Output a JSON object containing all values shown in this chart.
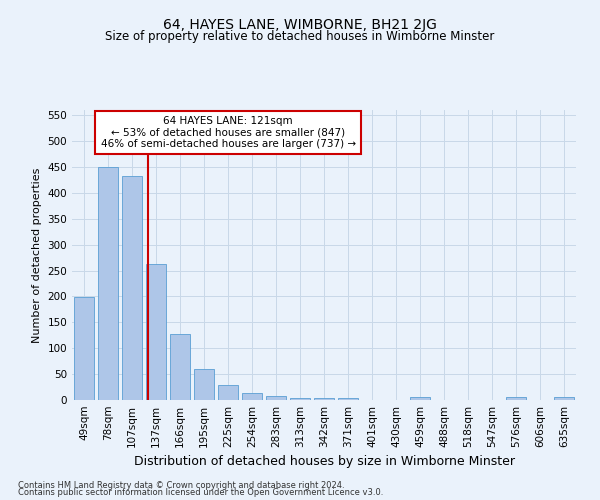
{
  "title": "64, HAYES LANE, WIMBORNE, BH21 2JG",
  "subtitle": "Size of property relative to detached houses in Wimborne Minster",
  "xlabel": "Distribution of detached houses by size in Wimborne Minster",
  "ylabel": "Number of detached properties",
  "footer_line1": "Contains HM Land Registry data © Crown copyright and database right 2024.",
  "footer_line2": "Contains public sector information licensed under the Open Government Licence v3.0.",
  "bin_labels": [
    "49sqm",
    "78sqm",
    "107sqm",
    "137sqm",
    "166sqm",
    "195sqm",
    "225sqm",
    "254sqm",
    "283sqm",
    "313sqm",
    "342sqm",
    "371sqm",
    "401sqm",
    "430sqm",
    "459sqm",
    "488sqm",
    "518sqm",
    "547sqm",
    "576sqm",
    "606sqm",
    "635sqm"
  ],
  "bar_heights": [
    198,
    450,
    432,
    262,
    127,
    60,
    29,
    14,
    7,
    3,
    3,
    3,
    0,
    0,
    5,
    0,
    0,
    0,
    5,
    0,
    5
  ],
  "bar_color": "#aec6e8",
  "bar_edge_color": "#5a9fd4",
  "red_line_x": 2.67,
  "red_line_color": "#cc0000",
  "annotation_text": "64 HAYES LANE: 121sqm\n← 53% of detached houses are smaller (847)\n46% of semi-detached houses are larger (737) →",
  "annotation_box_color": "white",
  "annotation_box_edge_color": "#cc0000",
  "ylim": [
    0,
    560
  ],
  "yticks": [
    0,
    50,
    100,
    150,
    200,
    250,
    300,
    350,
    400,
    450,
    500,
    550
  ],
  "grid_color": "#c8d8e8",
  "background_color": "#eaf2fb",
  "title_fontsize": 10,
  "subtitle_fontsize": 8.5,
  "ylabel_fontsize": 8,
  "xlabel_fontsize": 9,
  "tick_fontsize": 7.5,
  "footer_fontsize": 6,
  "annotation_fontsize": 7.5
}
